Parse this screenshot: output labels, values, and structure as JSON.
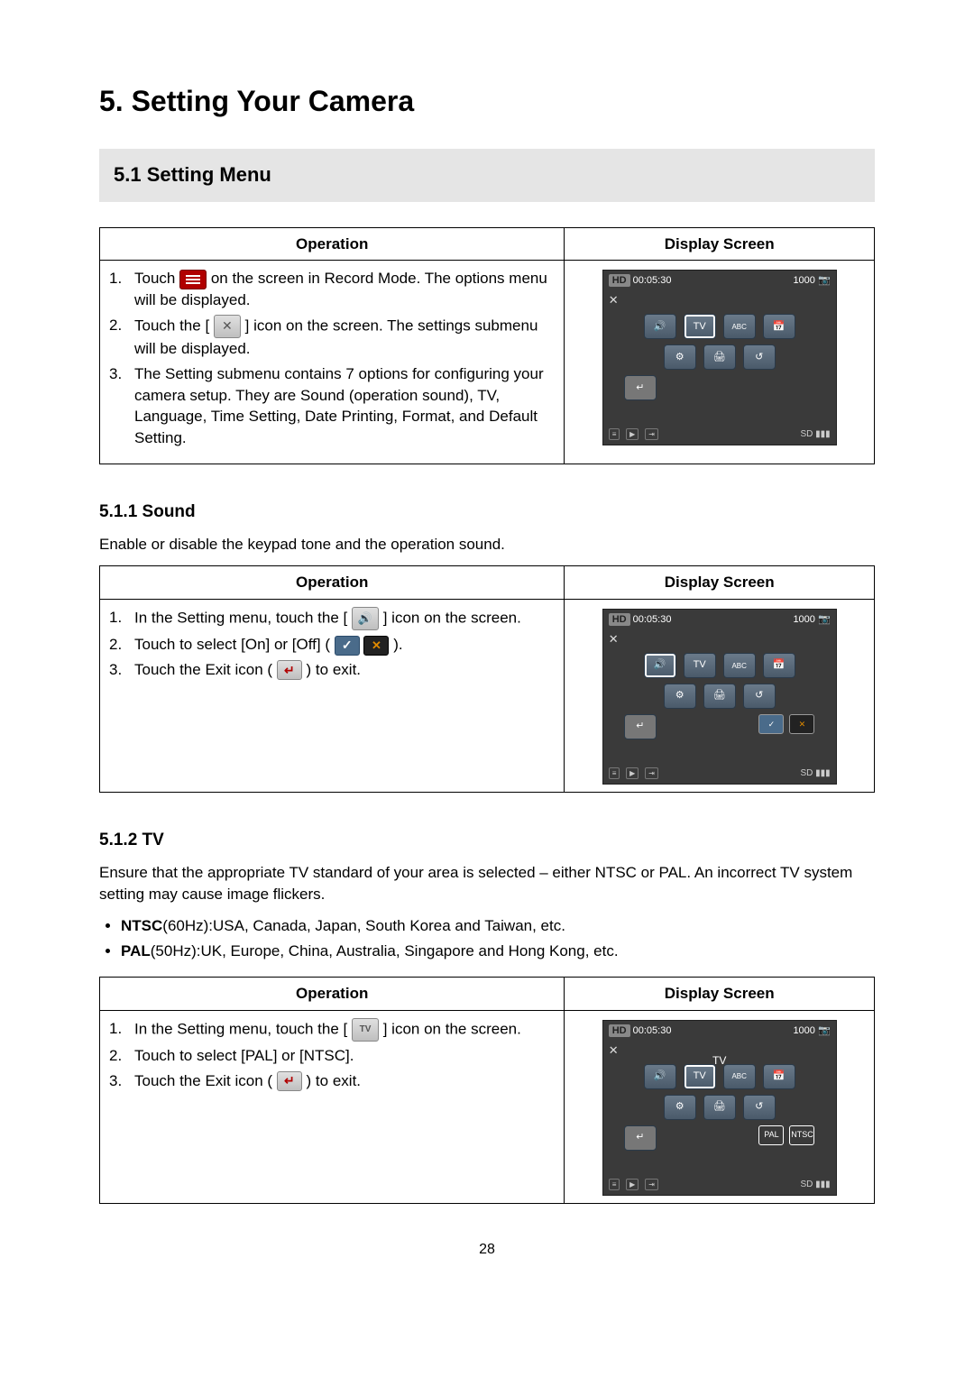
{
  "chapter": {
    "number": "5.",
    "title": "Setting Your Camera"
  },
  "section": {
    "number": "5.1",
    "title": "Setting Menu"
  },
  "table_headers": {
    "operation": "Operation",
    "display": "Display Screen"
  },
  "settings_table": {
    "steps": [
      "Touch  on the screen in Record Mode. The options menu will be displayed.",
      "Touch the [  ] icon on the screen. The settings submenu will be displayed.",
      "The Setting submenu contains 7 options for configuring your camera setup. They are Sound (operation sound), TV, Language, Time Setting, Date Printing, Format, and Default Setting."
    ],
    "step1_pre": "Touch",
    "step1_post": "on the screen in Record Mode. The options menu will be displayed.",
    "step2_pre": "Touch the [",
    "step2_post": "] icon on the screen. The settings submenu will be displayed.",
    "step3": "The Setting submenu contains 7 options for configuring your camera setup. They are Sound (operation sound), TV, Language, Time Setting, Date Printing, Format, and Default Setting."
  },
  "sound": {
    "number": "5.1.1",
    "title": "Sound",
    "desc": "Enable or disable the keypad tone and the operation sound.",
    "step1_pre": "In the Setting menu, touch the [",
    "step1_post": "] icon on the screen.",
    "step2_pre": "Touch to select [On] or [Off] (",
    "step2_post": ").",
    "step3_pre": "Touch the Exit icon (",
    "step3_post": ") to exit."
  },
  "tv": {
    "number": "5.1.2",
    "title": "TV",
    "desc": "Ensure that the appropriate TV standard of your area is selected – either NTSC or PAL. An incorrect TV system setting may cause image flickers.",
    "ntsc_label": "NTSC",
    "ntsc_hz": "(60Hz):",
    "ntsc_text": "USA, Canada, Japan, South Korea and Taiwan, etc.",
    "pal_label": "PAL",
    "pal_hz": "(50Hz):",
    "pal_text": "UK, Europe, China, Australia, Singapore and Hong Kong, etc.",
    "step1_pre": "In the Setting menu, touch the [",
    "step1_post": "] icon on the screen.",
    "step2": "Touch to select [PAL] or [NTSC].",
    "step3_pre": "Touch the Exit icon (",
    "step3_post": ") to exit."
  },
  "display_screen": {
    "hd": "HD",
    "time": "00:05:30",
    "count": "1000",
    "btn_sound": "🔊",
    "btn_tv": "TV",
    "btn_abc": "ABC",
    "btn_date": "📅",
    "btn_format": "⚙",
    "btn_printer": "🖨",
    "btn_reset": "↺",
    "btn_exit": "↵",
    "ok": "✓",
    "x": "✕",
    "pal": "PAL",
    "ntsc": "NTSC",
    "tv_label": "TV",
    "sd": "SD",
    "batt": "▮▮▮",
    "bottom_icons": [
      "≡",
      "▶",
      "⇥"
    ]
  },
  "page_number": "28",
  "colors": {
    "section_bg": "#e5e5e5",
    "menu_icon_bg": "#b00000",
    "screen_bg": "#3a3a3a",
    "cam_btn_bg_top": "#6a7a8a",
    "cam_btn_bg_bottom": "#4a5a6a"
  }
}
